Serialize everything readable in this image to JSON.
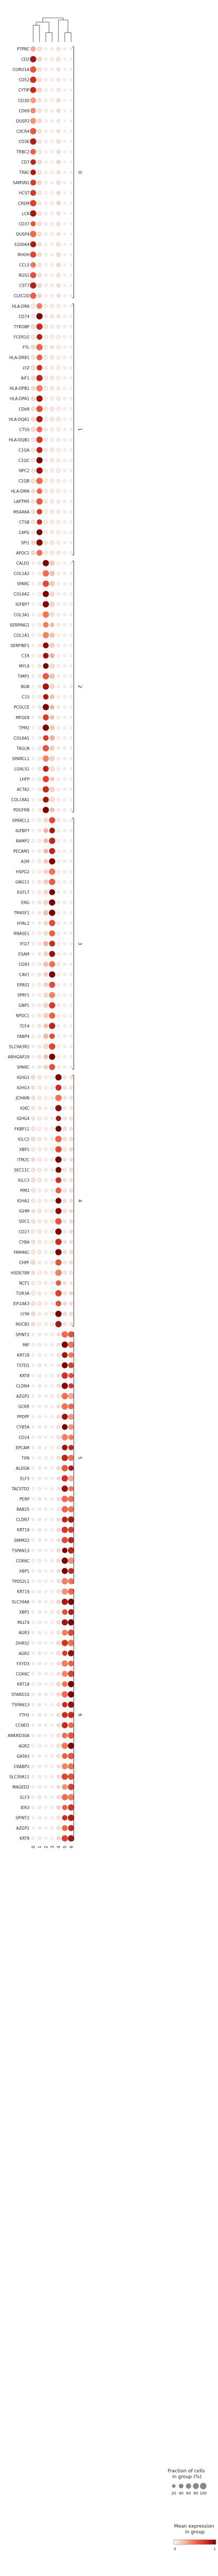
{
  "chart_data": {
    "type": "dotplot",
    "columns": [
      "0",
      "1",
      "2",
      "3",
      "4",
      "5",
      "6"
    ],
    "gene_groups": [
      {
        "label": "0",
        "genes": [
          "PTPRC",
          "CD2",
          "CORO1A",
          "CD52",
          "CYTIP",
          "CD3D",
          "CD69",
          "DUSP2",
          "CXCR4",
          "CD3E",
          "TRBC2",
          "CD7",
          "TRAC",
          "SAMSN1",
          "HCST",
          "CREM",
          "LCK",
          "CD37",
          "DUSP4",
          "S100A4",
          "RHOH",
          "CCL5",
          "RGS1",
          "CST7",
          "CLEC2D"
        ]
      },
      {
        "label": "1",
        "genes": [
          "HLA-DRA",
          "CD74",
          "TYROBP",
          "FCER1G",
          "FTL",
          "HLA-DRB1",
          "LYZ",
          "AIF1",
          "HLA-DPB1",
          "HLA-DPA1",
          "CD68",
          "HLA-DQA1",
          "CTSS",
          "HLA-DQB1",
          "C1QA",
          "C1QC",
          "NPC2",
          "C1QB",
          "HLA-DMA",
          "LAPTM5",
          "MS4A6A",
          "CTSB",
          "CAPG",
          "SPI1",
          "APOC1"
        ]
      },
      {
        "label": "2",
        "genes": [
          "CALD1",
          "COL1A2",
          "SPARC",
          "COL6A2",
          "IGFBP7",
          "COL3A1",
          "SERPING1",
          "COL1A1",
          "SERPINF1",
          "C1R",
          "MYL9",
          "TIMP1",
          "BGN",
          "C1S",
          "PCOLCE",
          "MFGE8",
          "TPM2",
          "COL6A1",
          "TAGLN",
          "SPARCL1",
          "LGALS1",
          "LHFP",
          "ACTA2",
          "COL18A1",
          "PDGFRB"
        ]
      },
      {
        "label": "3",
        "genes": [
          "SPARCL1",
          "IGFBP7",
          "RAMP2",
          "PECAM1",
          "A2M",
          "HSPG2",
          "GNG11",
          "EGFL7",
          "ENG",
          "TM4SF1",
          "HYAL2",
          "RNASE1",
          "IFI27",
          "ESAM",
          "CD93",
          "CAV1",
          "EPAS1",
          "SPRY1",
          "GNP1",
          "NPDC1",
          "TCF4",
          "FABP4",
          "SLC9A3R2",
          "ARHGAP29",
          "SPARC"
        ]
      },
      {
        "label": "4",
        "genes": [
          "IGHG1",
          "IGHG3",
          "JCHAIN",
          "IGKC",
          "IGHG4",
          "FKBP11",
          "IGLC2",
          "XBP1",
          "ITM2C",
          "SEC11C",
          "IGLC3",
          "PIM2",
          "IGHA1",
          "IGHM",
          "SDC1",
          "CD27",
          "CYBA",
          "FAM46C",
          "CHPF",
          "HSDE7B8",
          "NCF1",
          "TOR3A",
          "EIF2AK3",
          "LY96",
          "NUCB2"
        ]
      },
      {
        "label": "5",
        "genes": [
          "SPINT2",
          "MIF",
          "KRT18",
          "TSTD1",
          "KRT8",
          "CLDN4",
          "AZGP1",
          "GCKR",
          "PPDPF",
          "CYB5A",
          "CD24",
          "EPCAM",
          "TXN",
          "ALDOA",
          "ELF3",
          "TACSTD2",
          "PERP",
          "RAB25",
          "CLDN7",
          "KRT19",
          "SMIM22",
          "TSPAN13",
          "COX6C",
          "XBP1",
          "TPD52L1"
        ]
      },
      {
        "label": "6",
        "genes": [
          "KRT19",
          "SLC39A6",
          "XBP1",
          "MLLT4",
          "AGR3",
          "DHRS2",
          "AGR2",
          "FXYD3",
          "COX6C",
          "KRT18",
          "STARD10",
          "TSPAN13",
          "FTH1",
          "CCND1",
          "ANKRD30A",
          "AGR2",
          "GATA3",
          "CRABP2",
          "SLC39A11",
          "MAGED2",
          "ELF3",
          "IER3",
          "SPINT2",
          "AZGP1",
          "KRT8"
        ]
      }
    ],
    "dot_values": {
      "description_scale": "per-row values for columns 0..6: fraction in group (0-1) and mean expression (0-1)",
      "group_profiles": [
        {
          "frac": [
            0.85,
            0.35,
            0.15,
            0.15,
            0.3,
            0.05,
            0.05
          ],
          "expr": [
            0.6,
            0.1,
            0.02,
            0.02,
            0.1,
            0.01,
            0.01
          ]
        },
        {
          "frac": [
            0.4,
            0.95,
            0.3,
            0.3,
            0.3,
            0.1,
            0.1
          ],
          "expr": [
            0.1,
            0.75,
            0.05,
            0.05,
            0.05,
            0.02,
            0.02
          ]
        },
        {
          "frac": [
            0.1,
            0.2,
            0.95,
            0.45,
            0.15,
            0.1,
            0.1
          ],
          "expr": [
            0.02,
            0.05,
            0.8,
            0.2,
            0.03,
            0.02,
            0.02
          ]
        },
        {
          "frac": [
            0.1,
            0.2,
            0.45,
            0.95,
            0.15,
            0.1,
            0.1
          ],
          "expr": [
            0.02,
            0.05,
            0.2,
            0.8,
            0.03,
            0.02,
            0.02
          ]
        },
        {
          "frac": [
            0.35,
            0.25,
            0.15,
            0.2,
            0.95,
            0.2,
            0.2
          ],
          "expr": [
            0.1,
            0.05,
            0.03,
            0.03,
            0.85,
            0.1,
            0.1
          ]
        },
        {
          "frac": [
            0.1,
            0.15,
            0.1,
            0.1,
            0.2,
            0.98,
            0.85
          ],
          "expr": [
            0.02,
            0.05,
            0.02,
            0.02,
            0.1,
            0.85,
            0.6
          ]
        },
        {
          "frac": [
            0.1,
            0.15,
            0.1,
            0.1,
            0.25,
            0.85,
            0.98
          ],
          "expr": [
            0.02,
            0.05,
            0.02,
            0.02,
            0.1,
            0.6,
            0.85
          ]
        }
      ]
    },
    "legend": {
      "size_title": "Fraction of cells\nin group (%)",
      "size_ticks": [
        "20",
        "40",
        "60",
        "80",
        "100"
      ],
      "size_values": [
        20,
        40,
        60,
        80,
        100
      ],
      "color_title": "Mean expression\nin group",
      "color_ticks": [
        "0",
        "1"
      ],
      "color_low": "#fff5f0",
      "color_high": "#b2182b"
    }
  }
}
